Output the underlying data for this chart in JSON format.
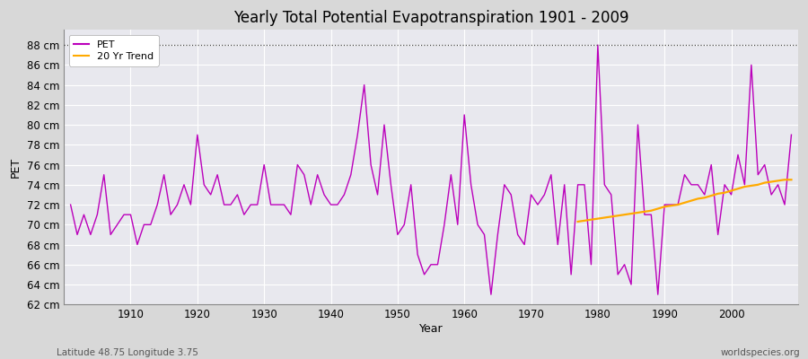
{
  "title": "Yearly Total Potential Evapotranspiration 1901 - 2009",
  "xlabel": "Year",
  "ylabel": "PET",
  "footnote_left": "Latitude 48.75 Longitude 3.75",
  "footnote_right": "worldspecies.org",
  "ylim": [
    62,
    89
  ],
  "yticks": [
    62,
    64,
    66,
    68,
    70,
    72,
    74,
    76,
    78,
    80,
    82,
    84,
    86,
    88
  ],
  "xticks": [
    1910,
    1920,
    1930,
    1940,
    1950,
    1960,
    1970,
    1980,
    1990,
    2000
  ],
  "pet_color": "#bb00bb",
  "trend_color": "#ffaa00",
  "bg_color": "#d8d8d8",
  "plot_bg_color": "#e8e8ee",
  "hline_y": 88,
  "hline_color": "#444444",
  "years": [
    1901,
    1902,
    1903,
    1904,
    1905,
    1906,
    1907,
    1908,
    1909,
    1910,
    1911,
    1912,
    1913,
    1914,
    1915,
    1916,
    1917,
    1918,
    1919,
    1920,
    1921,
    1922,
    1923,
    1924,
    1925,
    1926,
    1927,
    1928,
    1929,
    1930,
    1931,
    1932,
    1933,
    1934,
    1935,
    1936,
    1937,
    1938,
    1939,
    1940,
    1941,
    1942,
    1943,
    1944,
    1945,
    1946,
    1947,
    1948,
    1949,
    1950,
    1951,
    1952,
    1953,
    1954,
    1955,
    1956,
    1957,
    1958,
    1959,
    1960,
    1961,
    1962,
    1963,
    1964,
    1965,
    1966,
    1967,
    1968,
    1969,
    1970,
    1971,
    1972,
    1973,
    1974,
    1975,
    1976,
    1977,
    1978,
    1979,
    1980,
    1981,
    1982,
    1983,
    1984,
    1985,
    1986,
    1987,
    1988,
    1989,
    1990,
    1991,
    1992,
    1993,
    1994,
    1995,
    1996,
    1997,
    1998,
    1999,
    2000,
    2001,
    2002,
    2003,
    2004,
    2005,
    2006,
    2007,
    2008,
    2009
  ],
  "pet_values": [
    72,
    69,
    71,
    69,
    71,
    75,
    69,
    70,
    71,
    71,
    68,
    70,
    70,
    72,
    75,
    71,
    72,
    74,
    72,
    79,
    74,
    73,
    75,
    72,
    72,
    73,
    71,
    72,
    72,
    76,
    72,
    72,
    72,
    71,
    76,
    75,
    72,
    75,
    73,
    72,
    72,
    73,
    75,
    79,
    84,
    76,
    73,
    80,
    74,
    69,
    70,
    74,
    67,
    65,
    66,
    66,
    70,
    75,
    70,
    81,
    74,
    70,
    69,
    63,
    69,
    74,
    73,
    69,
    68,
    73,
    72,
    73,
    75,
    68,
    74,
    65,
    74,
    74,
    66,
    88,
    74,
    73,
    65,
    66,
    64,
    80,
    71,
    71,
    63,
    72,
    72,
    72,
    75,
    74,
    74,
    73,
    76,
    69,
    74,
    73,
    77,
    74,
    86,
    75,
    76,
    73,
    74,
    72,
    79
  ],
  "trend_values_years": [
    1977,
    1978,
    1979,
    1980,
    1981,
    1982,
    1983,
    1984,
    1985,
    1986,
    1987,
    1988,
    1989,
    1990,
    1991,
    1992,
    1993,
    1994,
    1995,
    1996,
    1997,
    1998,
    1999,
    2000,
    2001,
    2002,
    2003,
    2004,
    2005,
    2006,
    2007,
    2008,
    2009
  ],
  "trend_values": [
    70.3,
    70.4,
    70.5,
    70.6,
    70.7,
    70.8,
    70.9,
    71.0,
    71.1,
    71.2,
    71.3,
    71.4,
    71.6,
    71.8,
    71.9,
    72.0,
    72.2,
    72.4,
    72.6,
    72.7,
    72.9,
    73.1,
    73.2,
    73.4,
    73.6,
    73.8,
    73.9,
    74.0,
    74.2,
    74.3,
    74.4,
    74.5,
    74.5
  ]
}
